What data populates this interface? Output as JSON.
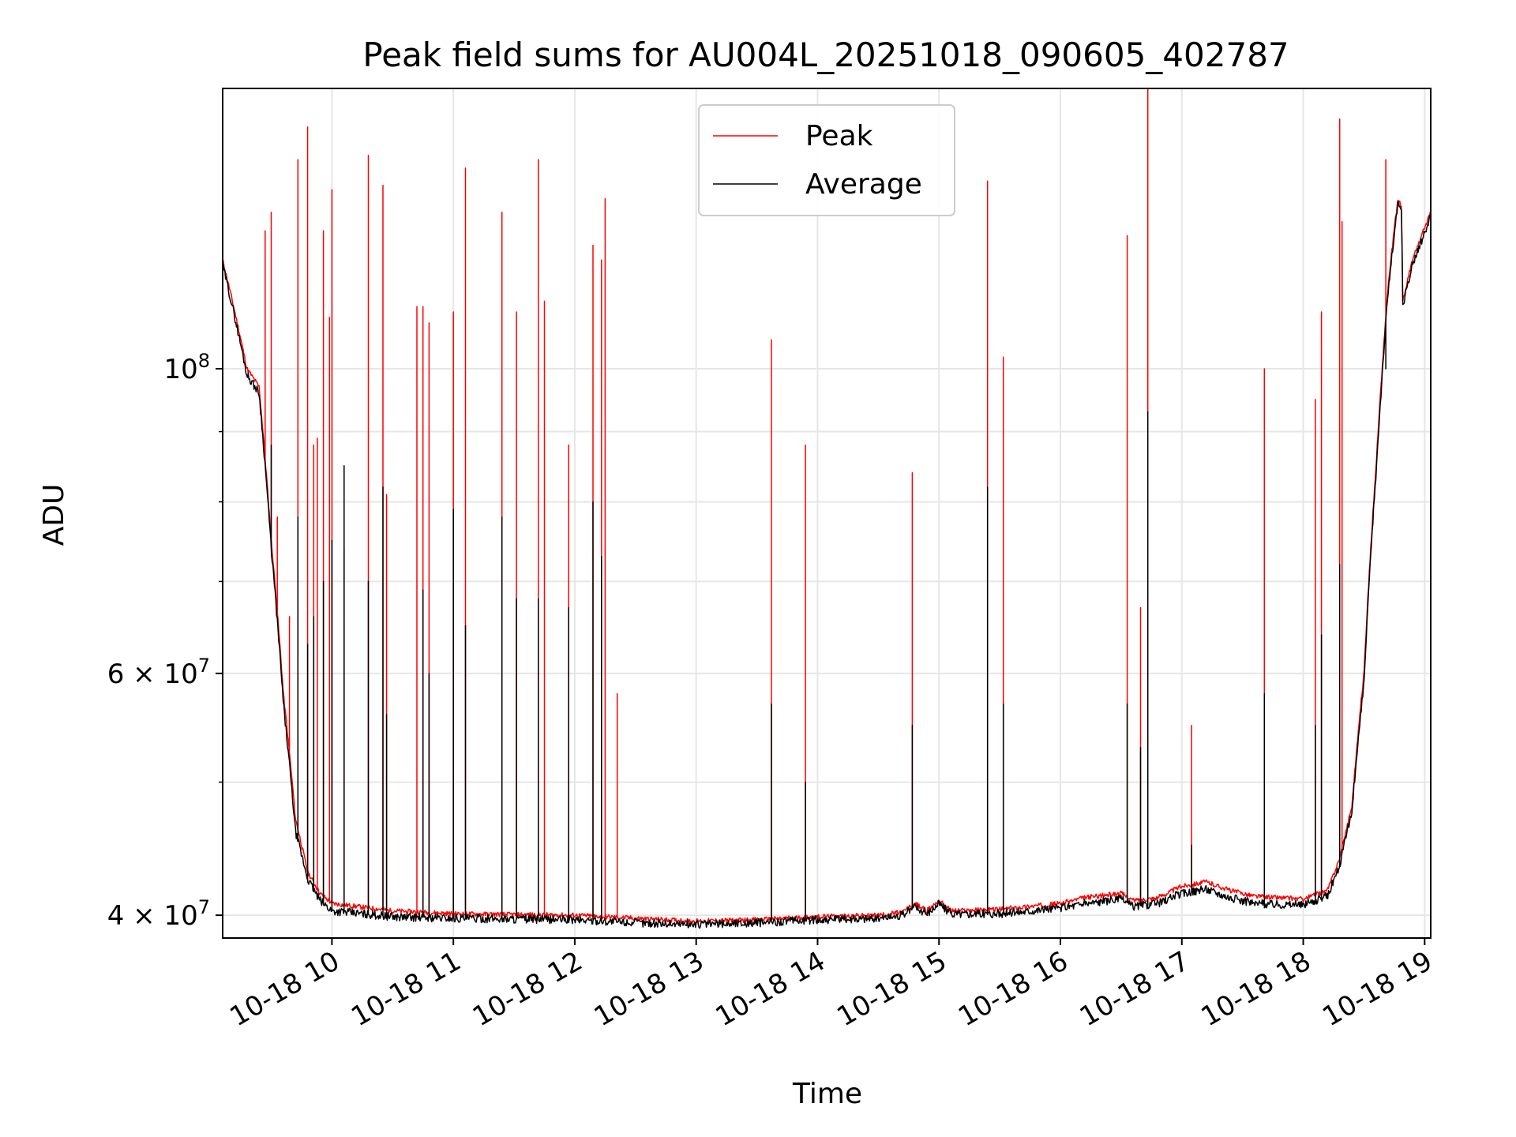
{
  "chart_data": {
    "type": "line",
    "title": "Peak field sums for AU004L_20251018_090605_402787",
    "xlabel": "Time",
    "ylabel": "ADU",
    "yscale": "log",
    "ylim": [
      38500000,
      160000000
    ],
    "xlim_hours": [
      9.1,
      19.05
    ],
    "grid": true,
    "legend_position": "upper-center",
    "x_ticks": [
      {
        "hour": 10,
        "label": "10-18 10"
      },
      {
        "hour": 11,
        "label": "10-18 11"
      },
      {
        "hour": 12,
        "label": "10-18 12"
      },
      {
        "hour": 13,
        "label": "10-18 13"
      },
      {
        "hour": 14,
        "label": "10-18 14"
      },
      {
        "hour": 15,
        "label": "10-18 15"
      },
      {
        "hour": 16,
        "label": "10-18 16"
      },
      {
        "hour": 17,
        "label": "10-18 17"
      },
      {
        "hour": 18,
        "label": "10-18 18"
      },
      {
        "hour": 19,
        "label": "10-18 19"
      }
    ],
    "y_ticks_major": [
      {
        "value": 40000000,
        "base": "4",
        "exp": "7"
      },
      {
        "value": 60000000,
        "base": "6",
        "exp": "7"
      },
      {
        "value": 100000000,
        "base": "",
        "exp": "8"
      }
    ],
    "y_ticks_minor": [
      50000000,
      70000000,
      80000000,
      90000000
    ],
    "series": [
      {
        "name": "Peak",
        "color": "#ff0000",
        "baseline": [
          [
            9.1,
            120000000
          ],
          [
            9.2,
            110000000
          ],
          [
            9.3,
            100000000
          ],
          [
            9.4,
            97000000
          ],
          [
            9.5,
            75000000
          ],
          [
            9.6,
            58000000
          ],
          [
            9.7,
            47000000
          ],
          [
            9.8,
            43000000
          ],
          [
            9.9,
            41500000
          ],
          [
            10.0,
            40800000
          ],
          [
            10.5,
            40300000
          ],
          [
            11.0,
            40100000
          ],
          [
            12.0,
            40000000
          ],
          [
            12.5,
            39800000
          ],
          [
            13.0,
            39600000
          ],
          [
            13.5,
            39700000
          ],
          [
            14.0,
            39900000
          ],
          [
            14.5,
            40000000
          ],
          [
            14.7,
            40200000
          ],
          [
            14.8,
            40800000
          ],
          [
            14.9,
            40300000
          ],
          [
            15.0,
            41000000
          ],
          [
            15.1,
            40300000
          ],
          [
            15.5,
            40400000
          ],
          [
            16.0,
            40800000
          ],
          [
            16.2,
            41200000
          ],
          [
            16.5,
            41500000
          ],
          [
            16.6,
            41000000
          ],
          [
            16.8,
            41200000
          ],
          [
            17.0,
            42000000
          ],
          [
            17.2,
            42300000
          ],
          [
            17.4,
            41700000
          ],
          [
            17.6,
            41300000
          ],
          [
            18.0,
            41100000
          ],
          [
            18.2,
            41700000
          ],
          [
            18.3,
            44000000
          ],
          [
            18.4,
            48000000
          ],
          [
            18.5,
            60000000
          ],
          [
            18.6,
            85000000
          ],
          [
            18.7,
            115000000
          ],
          [
            18.78,
            133000000
          ],
          [
            18.81,
            131000000
          ],
          [
            18.82,
            112000000
          ],
          [
            18.9,
            120000000
          ],
          [
            19.05,
            130000000
          ]
        ],
        "spikes": [
          [
            9.45,
            126000000
          ],
          [
            9.5,
            130000000
          ],
          [
            9.55,
            78000000
          ],
          [
            9.65,
            66000000
          ],
          [
            9.72,
            142000000
          ],
          [
            9.8,
            150000000
          ],
          [
            9.85,
            88000000
          ],
          [
            9.88,
            89000000
          ],
          [
            9.93,
            126000000
          ],
          [
            9.98,
            109000000
          ],
          [
            10.0,
            135000000
          ],
          [
            10.1,
            74000000
          ],
          [
            10.3,
            143000000
          ],
          [
            10.42,
            136000000
          ],
          [
            10.45,
            81000000
          ],
          [
            10.7,
            111000000
          ],
          [
            10.75,
            111000000
          ],
          [
            10.8,
            108000000
          ],
          [
            11.0,
            110000000
          ],
          [
            11.1,
            140000000
          ],
          [
            11.4,
            130000000
          ],
          [
            11.52,
            110000000
          ],
          [
            11.7,
            142000000
          ],
          [
            11.75,
            112000000
          ],
          [
            11.95,
            88000000
          ],
          [
            12.15,
            123000000
          ],
          [
            12.22,
            120000000
          ],
          [
            12.25,
            133000000
          ],
          [
            12.35,
            58000000
          ],
          [
            13.62,
            105000000
          ],
          [
            13.9,
            88000000
          ],
          [
            14.78,
            84000000
          ],
          [
            15.4,
            137000000
          ],
          [
            15.53,
            102000000
          ],
          [
            16.55,
            125000000
          ],
          [
            16.66,
            67000000
          ],
          [
            16.72,
            160000000
          ],
          [
            17.08,
            55000000
          ],
          [
            17.68,
            100000000
          ],
          [
            18.1,
            95000000
          ],
          [
            18.15,
            110000000
          ],
          [
            18.3,
            152000000
          ],
          [
            18.32,
            128000000
          ],
          [
            18.68,
            142000000
          ]
        ]
      },
      {
        "name": "Average",
        "color": "#000000",
        "baseline": [
          [
            9.1,
            119000000
          ],
          [
            9.2,
            109000000
          ],
          [
            9.3,
            99000000
          ],
          [
            9.4,
            96000000
          ],
          [
            9.5,
            74000000
          ],
          [
            9.6,
            57000000
          ],
          [
            9.7,
            46000000
          ],
          [
            9.8,
            42500000
          ],
          [
            9.9,
            41000000
          ],
          [
            10.0,
            40300000
          ],
          [
            10.5,
            39900000
          ],
          [
            11.0,
            39800000
          ],
          [
            12.0,
            39700000
          ],
          [
            12.5,
            39500000
          ],
          [
            13.0,
            39400000
          ],
          [
            13.5,
            39500000
          ],
          [
            14.0,
            39700000
          ],
          [
            14.5,
            39800000
          ],
          [
            14.7,
            40000000
          ],
          [
            14.8,
            40600000
          ],
          [
            14.9,
            40100000
          ],
          [
            15.0,
            40800000
          ],
          [
            15.1,
            40100000
          ],
          [
            15.5,
            40100000
          ],
          [
            16.0,
            40500000
          ],
          [
            16.2,
            40800000
          ],
          [
            16.5,
            41100000
          ],
          [
            16.6,
            40600000
          ],
          [
            16.8,
            40800000
          ],
          [
            17.0,
            41500000
          ],
          [
            17.2,
            41800000
          ],
          [
            17.4,
            41200000
          ],
          [
            17.6,
            40800000
          ],
          [
            18.0,
            40700000
          ],
          [
            18.2,
            41300000
          ],
          [
            18.3,
            43500000
          ],
          [
            18.4,
            47500000
          ],
          [
            18.5,
            59000000
          ],
          [
            18.6,
            84000000
          ],
          [
            18.7,
            114000000
          ],
          [
            18.78,
            132000000
          ],
          [
            18.81,
            130000000
          ],
          [
            18.82,
            111000000
          ],
          [
            18.9,
            119000000
          ],
          [
            19.05,
            129000000
          ]
        ],
        "spikes": [
          [
            9.5,
            88000000
          ],
          [
            9.72,
            78000000
          ],
          [
            9.8,
            63000000
          ],
          [
            9.85,
            66000000
          ],
          [
            9.93,
            70000000
          ],
          [
            10.0,
            75000000
          ],
          [
            10.1,
            85000000
          ],
          [
            10.3,
            70000000
          ],
          [
            10.42,
            82000000
          ],
          [
            10.45,
            56000000
          ],
          [
            10.75,
            69000000
          ],
          [
            10.8,
            60000000
          ],
          [
            11.0,
            79000000
          ],
          [
            11.1,
            65000000
          ],
          [
            11.4,
            78000000
          ],
          [
            11.52,
            68000000
          ],
          [
            11.7,
            68000000
          ],
          [
            11.95,
            67000000
          ],
          [
            12.15,
            80000000
          ],
          [
            12.22,
            73000000
          ],
          [
            13.62,
            57000000
          ],
          [
            13.9,
            50000000
          ],
          [
            14.78,
            55000000
          ],
          [
            15.4,
            82000000
          ],
          [
            15.53,
            57000000
          ],
          [
            16.55,
            57000000
          ],
          [
            16.66,
            53000000
          ],
          [
            16.72,
            93000000
          ],
          [
            17.08,
            45000000
          ],
          [
            17.68,
            58000000
          ],
          [
            18.1,
            55000000
          ],
          [
            18.15,
            64000000
          ],
          [
            18.3,
            72000000
          ],
          [
            18.68,
            100000000
          ]
        ]
      }
    ]
  }
}
